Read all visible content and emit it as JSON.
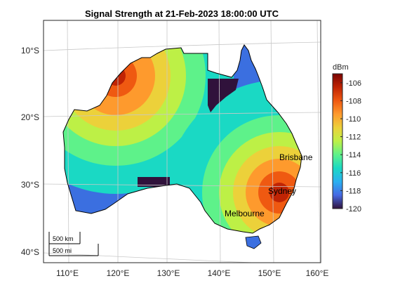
{
  "title": "Signal Strength at 21-Feb-2023 18:00:00 UTC",
  "map": {
    "lat_ticks": [
      "10°S",
      "20°S",
      "30°S",
      "40°S"
    ],
    "lon_ticks": [
      "110°E",
      "120°E",
      "130°E",
      "140°E",
      "150°E",
      "160°E"
    ],
    "cities": [
      {
        "name": "Brisbane"
      },
      {
        "name": "Sydney"
      },
      {
        "name": "Melbourne"
      }
    ],
    "scalebar": {
      "km": "500 km",
      "mi": "500 mi"
    }
  },
  "colorbar": {
    "unit": "dBm",
    "ticks": [
      "-106",
      "-108",
      "-110",
      "-112",
      "-114",
      "-116",
      "-118",
      "-120"
    ],
    "range": [
      -120,
      -105
    ],
    "colormap": [
      "#30123b",
      "#4669e4",
      "#2ab0f1",
      "#1ad9c4",
      "#5ef28a",
      "#bdf046",
      "#ecd13a",
      "#fe9a2d",
      "#ef5911",
      "#c02404",
      "#7a0403"
    ]
  }
}
